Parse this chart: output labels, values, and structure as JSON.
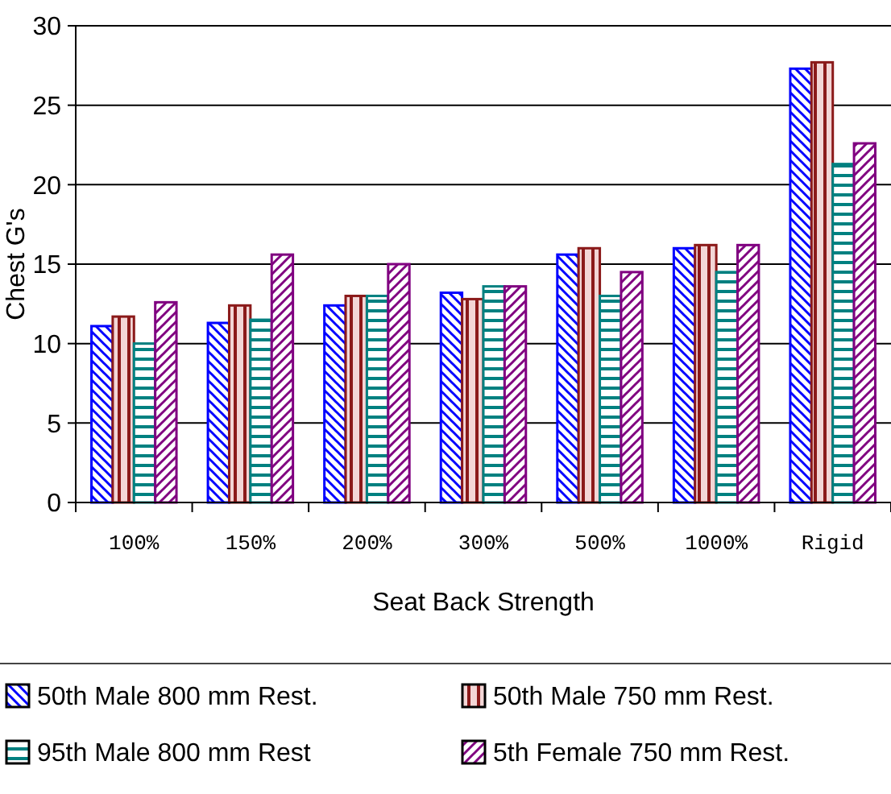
{
  "chart_data": {
    "type": "bar",
    "xlabel": "Seat Back Strength",
    "ylabel": "Chest G's",
    "categories": [
      "100%",
      "150%",
      "200%",
      "300%",
      "500%",
      "1000%",
      "Rigid"
    ],
    "series": [
      {
        "name": "50th Male 800 mm Rest.",
        "color": "#0000ff",
        "values": [
          11.1,
          11.3,
          12.4,
          13.2,
          15.6,
          16.0,
          27.3
        ]
      },
      {
        "name": "50th Male 750 mm Rest.",
        "color": "#8b1a1a",
        "values": [
          11.7,
          12.4,
          13.0,
          12.8,
          16.0,
          16.2,
          27.7
        ]
      },
      {
        "name": "95th Male 800 mm Rest",
        "color": "#008080",
        "values": [
          10.0,
          11.5,
          13.0,
          13.6,
          13.0,
          14.5,
          21.3
        ]
      },
      {
        "name": "5th Female 750 mm Rest.",
        "color": "#800080",
        "values": [
          12.6,
          15.6,
          15.0,
          13.6,
          14.5,
          16.2,
          22.6
        ]
      }
    ],
    "ylim": [
      0,
      30
    ],
    "yticks": [
      0,
      5,
      10,
      15,
      20,
      25,
      30
    ],
    "grid": "y",
    "legend": "bottom"
  }
}
